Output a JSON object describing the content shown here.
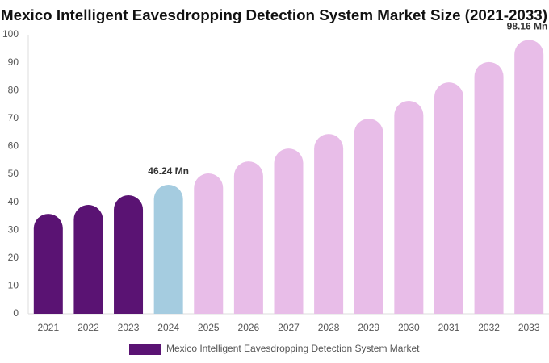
{
  "chart_data": {
    "type": "bar",
    "title": "Mexico Intelligent Eavesdropping Detection System Market Size (2021-2033)",
    "categories": [
      "2021",
      "2022",
      "2023",
      "2024",
      "2025",
      "2026",
      "2027",
      "2028",
      "2029",
      "2030",
      "2031",
      "2032",
      "2033"
    ],
    "series": [
      {
        "name": "Mexico Intelligent Eavesdropping Detection System Market",
        "color": "#5a1373",
        "values": [
          35.8,
          39.0,
          42.5,
          46.24,
          50.3,
          54.6,
          59.2,
          64.4,
          69.9,
          76.3,
          82.9,
          90.2,
          98.16
        ],
        "value_labels": [
          null,
          null,
          null,
          "46.24 Mn",
          null,
          null,
          null,
          null,
          null,
          null,
          null,
          null,
          "98.16 Mn"
        ],
        "bar_colors": [
          "#5a1373",
          "#5a1373",
          "#5a1373",
          "#a5cce0",
          "#e8bde8",
          "#e8bde8",
          "#e8bde8",
          "#e8bde8",
          "#e8bde8",
          "#e8bde8",
          "#e8bde8",
          "#e8bde8",
          "#e8bde8"
        ]
      }
    ],
    "ylim": [
      0,
      100
    ],
    "yticks": [
      0,
      10,
      20,
      30,
      40,
      50,
      60,
      70,
      80,
      90,
      100
    ],
    "grid": false
  }
}
